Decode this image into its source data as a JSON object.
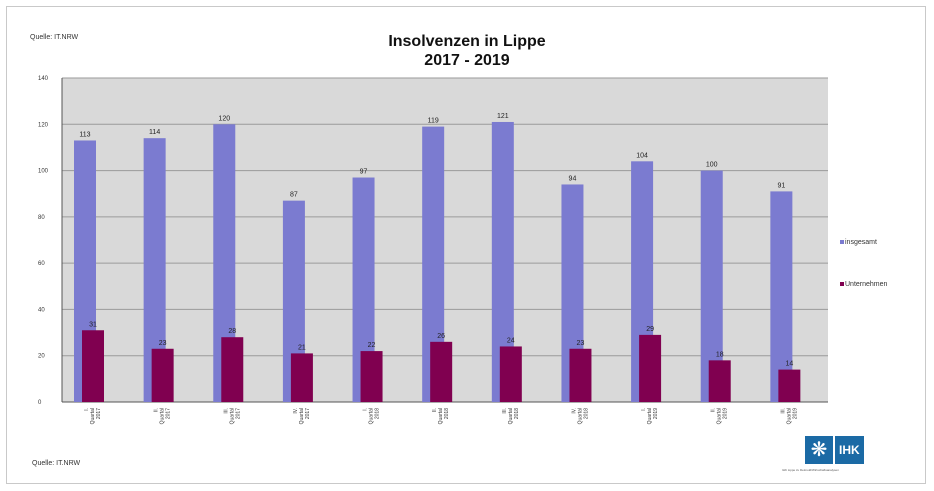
{
  "source_top": "Quelle: IT.NRW",
  "source_bottom": "Quelle: IT.NRW",
  "logo": {
    "icon": "ihk-eagle-icon",
    "text": "IHK",
    "subtext": "IHK Lippe zu Detmold/Wirtschaftsanalysen"
  },
  "colors": {
    "series1": "#7b7bd0",
    "series2": "#800050",
    "plot_bg": "#d9d9d9"
  },
  "chart_data": {
    "type": "bar",
    "title": "Insolvenzen in Lippe",
    "subtitle": "2017 - 2019",
    "categories": [
      [
        "I.",
        "Quartal",
        "2017"
      ],
      [
        "II.",
        "Quartal",
        "2017"
      ],
      [
        "III.",
        "Quartal",
        "2017"
      ],
      [
        "IV.",
        "Quartal",
        "2017"
      ],
      [
        "I.",
        "Quartal",
        "2018"
      ],
      [
        "II.",
        "Quartal",
        "2018"
      ],
      [
        "III.",
        "Quartal",
        "2018"
      ],
      [
        "IV.",
        "Quartal",
        "2018"
      ],
      [
        "I.",
        "Quartal",
        "2019"
      ],
      [
        "II.",
        "Quartal",
        "2019"
      ],
      [
        "III.",
        "Quartal",
        "2019"
      ]
    ],
    "series": [
      {
        "name": "insgesamt",
        "values": [
          113,
          114,
          120,
          87,
          97,
          119,
          121,
          94,
          104,
          100,
          91
        ]
      },
      {
        "name": "Unternehmen",
        "values": [
          31,
          23,
          28,
          21,
          22,
          26,
          24,
          23,
          29,
          18,
          14
        ]
      }
    ],
    "ylim": [
      0,
      140
    ],
    "yticks": [
      0,
      20,
      40,
      60,
      80,
      100,
      120,
      140
    ],
    "grid": true,
    "legend": "right"
  }
}
